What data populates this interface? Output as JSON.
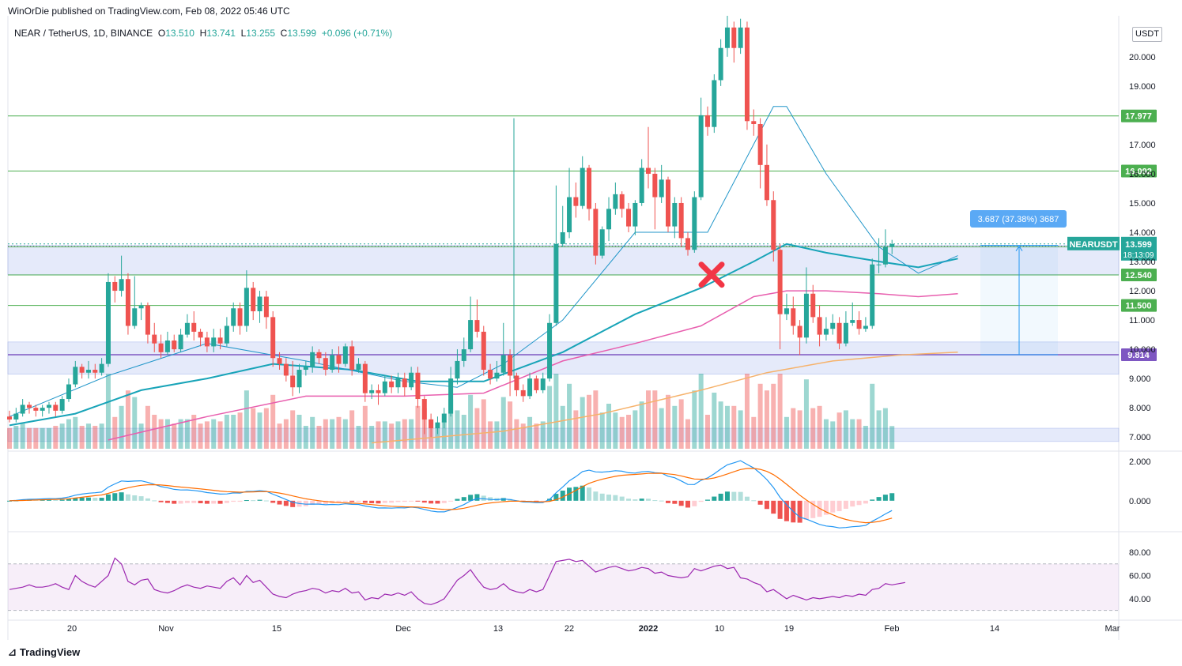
{
  "header": {
    "published": "WinOrDie published on TradingView.com, Feb 08, 2022 05:46 UTC"
  },
  "symbol": {
    "name": "NEAR / TetherUS, 1D, BINANCE",
    "o_label": "O",
    "o": "13.510",
    "h_label": "H",
    "h": "13.741",
    "l_label": "L",
    "l": "13.255",
    "c_label": "C",
    "c": "13.599",
    "change": "+0.096 (+0.71%)"
  },
  "currency": "USDT",
  "footer": {
    "brand": "TradingView"
  },
  "colors": {
    "up": "#26a69a",
    "down": "#ef5350",
    "ma_fast": "#2196c9",
    "ma_mid": "#18a4b8",
    "ma_slow": "#e85eae",
    "ma_long": "#f6b26b",
    "hline": "#4caf50",
    "support": "#7e57c2",
    "rsi": "#9c27b0"
  },
  "chart_data": {
    "type": "candlestick",
    "ylim": [
      6.6,
      21.4
    ],
    "y_ticks": [
      "7.000",
      "8.000",
      "9.000",
      "10.000",
      "11.000",
      "12.000",
      "13.000",
      "14.000",
      "15.000",
      "16.000",
      "17.000",
      "19.000",
      "20.000"
    ],
    "x_ticks": [
      "20",
      "Nov",
      "15",
      "Dec",
      "13",
      "22",
      "2022",
      "10",
      "19",
      "Feb",
      "14",
      "Mar"
    ],
    "levels": [
      {
        "label": "17.977",
        "value": 17.977
      },
      {
        "label": "16.092",
        "value": 16.092
      },
      {
        "label": "13.503",
        "value": 13.503
      },
      {
        "label": "12.540",
        "value": 12.54
      },
      {
        "label": "11.500",
        "value": 11.5
      },
      {
        "label": "9.814",
        "value": 9.814
      }
    ],
    "price_label": {
      "name": "NEARUSDT",
      "value": "13.599",
      "countdown": "18:13:09"
    },
    "measure_label": "3.687 (37.38%) 3687",
    "zones": [
      [
        12.55,
        13.55
      ],
      [
        9.15,
        10.25
      ],
      [
        6.85,
        7.3
      ]
    ],
    "candles": [
      [
        7.7,
        7.6,
        7.9,
        7.5
      ],
      [
        7.6,
        7.8,
        8.0,
        7.5
      ],
      [
        7.8,
        8.1,
        8.3,
        7.7
      ],
      [
        8.1,
        8.0,
        8.2,
        7.8
      ],
      [
        8.0,
        7.9,
        8.1,
        7.7
      ],
      [
        7.9,
        8.0,
        8.1,
        7.7
      ],
      [
        8.0,
        8.1,
        8.2,
        7.8
      ],
      [
        8.1,
        7.9,
        8.2,
        7.7
      ],
      [
        7.9,
        8.3,
        8.4,
        7.8
      ],
      [
        8.3,
        8.8,
        9.0,
        8.2
      ],
      [
        8.8,
        9.4,
        9.6,
        8.7
      ],
      [
        9.4,
        9.2,
        9.5,
        9.0
      ],
      [
        9.2,
        9.3,
        9.6,
        9.0
      ],
      [
        9.3,
        9.2,
        9.5,
        9.0
      ],
      [
        9.2,
        9.5,
        9.7,
        9.1
      ],
      [
        9.5,
        12.3,
        12.6,
        9.4
      ],
      [
        12.3,
        12.0,
        12.5,
        11.6
      ],
      [
        12.0,
        12.4,
        13.2,
        11.8
      ],
      [
        12.4,
        10.8,
        12.6,
        10.5
      ],
      [
        10.8,
        11.4,
        12.5,
        10.7
      ],
      [
        11.4,
        11.5,
        11.6,
        11.0
      ],
      [
        11.5,
        10.5,
        11.6,
        10.2
      ],
      [
        10.5,
        10.2,
        10.9,
        9.9
      ],
      [
        10.2,
        9.9,
        10.5,
        9.7
      ],
      [
        9.9,
        10.3,
        10.6,
        9.8
      ],
      [
        10.3,
        10.0,
        10.5,
        9.9
      ],
      [
        10.0,
        10.5,
        10.7,
        9.9
      ],
      [
        10.5,
        10.9,
        11.2,
        10.4
      ],
      [
        10.9,
        10.6,
        11.3,
        10.3
      ],
      [
        10.6,
        10.4,
        10.7,
        10.1
      ],
      [
        10.4,
        10.1,
        10.6,
        9.9
      ],
      [
        10.1,
        10.4,
        10.7,
        9.9
      ],
      [
        10.4,
        10.2,
        10.7,
        10.0
      ],
      [
        10.2,
        10.8,
        11.1,
        10.1
      ],
      [
        10.8,
        11.4,
        11.6,
        10.6
      ],
      [
        11.4,
        10.8,
        11.6,
        10.5
      ],
      [
        10.8,
        12.1,
        12.7,
        10.6
      ],
      [
        12.1,
        11.3,
        12.3,
        11.0
      ],
      [
        11.3,
        11.8,
        12.0,
        10.9
      ],
      [
        11.8,
        11.1,
        12.0,
        10.7
      ],
      [
        11.1,
        9.7,
        11.3,
        9.4
      ],
      [
        9.7,
        9.5,
        9.9,
        9.3
      ],
      [
        9.5,
        9.1,
        9.7,
        8.9
      ],
      [
        9.1,
        8.7,
        9.6,
        8.4
      ],
      [
        8.7,
        9.3,
        9.5,
        8.5
      ],
      [
        9.3,
        9.4,
        9.6,
        9.1
      ],
      [
        9.4,
        9.9,
        10.1,
        9.2
      ],
      [
        9.9,
        9.7,
        10.0,
        9.5
      ],
      [
        9.7,
        9.3,
        9.9,
        9.1
      ],
      [
        9.3,
        9.8,
        10.0,
        9.2
      ],
      [
        9.8,
        9.5,
        10.1,
        9.2
      ],
      [
        9.5,
        10.1,
        10.2,
        9.4
      ],
      [
        10.1,
        9.3,
        10.3,
        9.1
      ],
      [
        9.3,
        9.5,
        9.7,
        9.2
      ],
      [
        9.5,
        8.5,
        9.6,
        8.2
      ],
      [
        8.5,
        8.6,
        8.8,
        8.3
      ],
      [
        8.6,
        8.5,
        8.8,
        8.1
      ],
      [
        8.5,
        8.9,
        9.1,
        8.4
      ],
      [
        8.9,
        8.7,
        9.1,
        8.5
      ],
      [
        8.7,
        9.0,
        9.2,
        8.5
      ],
      [
        9.0,
        8.7,
        9.2,
        8.4
      ],
      [
        8.7,
        9.2,
        9.4,
        8.6
      ],
      [
        9.2,
        8.3,
        9.4,
        8.0
      ],
      [
        8.3,
        7.6,
        8.4,
        7.1
      ],
      [
        7.6,
        7.3,
        7.8,
        7.0
      ],
      [
        7.3,
        7.5,
        7.7,
        7.1
      ],
      [
        7.5,
        7.8,
        8.0,
        7.3
      ],
      [
        7.8,
        9.0,
        9.4,
        7.7
      ],
      [
        9.0,
        9.6,
        10.0,
        8.8
      ],
      [
        9.6,
        10.0,
        10.4,
        9.4
      ],
      [
        10.0,
        11.0,
        11.8,
        9.9
      ],
      [
        11.0,
        10.6,
        11.7,
        10.4
      ],
      [
        10.6,
        9.3,
        10.8,
        9.1
      ],
      [
        9.3,
        9.0,
        9.5,
        8.8
      ],
      [
        9.0,
        9.2,
        9.6,
        8.9
      ],
      [
        9.2,
        9.8,
        10.9,
        9.1
      ],
      [
        9.8,
        9.1,
        10.0,
        8.4
      ],
      [
        9.1,
        8.6,
        9.2,
        8.4
      ],
      [
        8.6,
        8.4,
        8.8,
        8.2
      ],
      [
        8.4,
        9.0,
        9.2,
        8.3
      ],
      [
        9.0,
        8.6,
        9.1,
        8.5
      ],
      [
        8.6,
        9.0,
        9.2,
        8.5
      ],
      [
        9.0,
        10.9,
        11.2,
        8.9
      ],
      [
        10.9,
        13.6,
        15.6,
        10.8
      ],
      [
        13.6,
        14.0,
        14.9,
        13.5
      ],
      [
        14.0,
        15.2,
        16.2,
        13.8
      ],
      [
        15.2,
        14.9,
        15.7,
        14.5
      ],
      [
        14.9,
        16.2,
        16.6,
        14.8
      ],
      [
        16.2,
        14.8,
        16.3,
        14.4
      ],
      [
        14.8,
        13.2,
        15.0,
        12.9
      ],
      [
        13.2,
        14.1,
        14.2,
        13.1
      ],
      [
        14.1,
        14.8,
        15.2,
        13.7
      ],
      [
        14.8,
        15.3,
        15.7,
        14.6
      ],
      [
        15.3,
        14.8,
        15.4,
        14.5
      ],
      [
        14.8,
        14.2,
        15.0,
        14.0
      ],
      [
        14.2,
        15.0,
        15.1,
        13.9
      ],
      [
        15.0,
        16.2,
        16.5,
        14.9
      ],
      [
        16.2,
        16.0,
        17.6,
        15.5
      ],
      [
        16.0,
        15.2,
        16.2,
        14.1
      ],
      [
        15.2,
        15.8,
        16.3,
        15.0
      ],
      [
        15.8,
        14.2,
        15.9,
        14.0
      ],
      [
        14.2,
        15.0,
        15.2,
        13.8
      ],
      [
        15.0,
        13.8,
        15.2,
        13.5
      ],
      [
        13.8,
        13.4,
        14.0,
        13.2
      ],
      [
        13.4,
        15.2,
        15.4,
        13.3
      ],
      [
        15.2,
        18.0,
        18.6,
        15.1
      ],
      [
        18.0,
        17.6,
        18.3,
        17.3
      ],
      [
        17.6,
        19.2,
        19.4,
        17.4
      ],
      [
        19.2,
        20.3,
        20.6,
        19.0
      ],
      [
        20.3,
        21.0,
        21.4,
        20.0
      ],
      [
        21.0,
        20.3,
        21.2,
        19.8
      ],
      [
        20.3,
        21.0,
        21.3,
        20.1
      ],
      [
        21.0,
        17.8,
        21.2,
        17.5
      ],
      [
        17.8,
        17.7,
        18.2,
        17.3
      ],
      [
        17.7,
        16.3,
        17.9,
        15.5
      ],
      [
        16.3,
        15.1,
        17.0,
        14.9
      ],
      [
        15.1,
        13.4,
        15.4,
        13.0
      ],
      [
        13.4,
        11.2,
        13.6,
        10.0
      ],
      [
        11.2,
        11.4,
        11.9,
        11.0
      ],
      [
        11.4,
        10.8,
        11.8,
        10.5
      ],
      [
        10.8,
        10.4,
        11.0,
        9.8
      ],
      [
        10.4,
        11.9,
        12.8,
        10.2
      ],
      [
        11.9,
        11.1,
        12.2,
        10.9
      ],
      [
        11.1,
        10.5,
        11.5,
        10.1
      ],
      [
        10.5,
        10.7,
        11.1,
        10.3
      ],
      [
        10.7,
        10.9,
        11.2,
        10.5
      ],
      [
        10.9,
        10.2,
        11.1,
        10.0
      ],
      [
        10.2,
        10.9,
        11.3,
        10.1
      ],
      [
        10.9,
        11.0,
        11.6,
        10.8
      ],
      [
        11.0,
        10.7,
        11.3,
        10.5
      ],
      [
        10.7,
        10.8,
        11.1,
        10.6
      ],
      [
        10.8,
        12.9,
        13.1,
        10.7
      ],
      [
        12.9,
        12.9,
        13.8,
        12.6
      ],
      [
        12.9,
        13.5,
        14.1,
        12.8
      ],
      [
        13.5,
        13.6,
        13.74,
        13.25
      ]
    ],
    "ma_fast": [
      [
        0,
        7.7
      ],
      [
        15,
        9.1
      ],
      [
        30,
        10.2
      ],
      [
        45,
        9.6
      ],
      [
        60,
        8.9
      ],
      [
        68,
        8.7
      ],
      [
        75,
        9.5
      ],
      [
        84,
        11.0
      ],
      [
        95,
        14.0
      ],
      [
        106,
        14.0
      ],
      [
        116,
        18.3
      ],
      [
        118,
        18.3
      ],
      [
        124,
        16.0
      ],
      [
        132,
        13.5
      ],
      [
        138,
        12.6
      ],
      [
        144,
        13.2
      ]
    ],
    "ma_mid": [
      [
        0,
        7.4
      ],
      [
        10,
        7.8
      ],
      [
        20,
        8.6
      ],
      [
        30,
        9.0
      ],
      [
        40,
        9.5
      ],
      [
        52,
        9.3
      ],
      [
        62,
        8.9
      ],
      [
        72,
        8.9
      ],
      [
        84,
        9.9
      ],
      [
        95,
        11.2
      ],
      [
        105,
        12.1
      ],
      [
        113,
        13.0
      ],
      [
        118,
        13.6
      ],
      [
        124,
        13.3
      ],
      [
        132,
        13.0
      ],
      [
        138,
        12.8
      ],
      [
        144,
        13.1
      ]
    ],
    "ma_slow": [
      [
        15,
        6.9
      ],
      [
        30,
        7.7
      ],
      [
        45,
        8.4
      ],
      [
        60,
        8.4
      ],
      [
        72,
        8.5
      ],
      [
        84,
        9.6
      ],
      [
        95,
        10.2
      ],
      [
        105,
        10.8
      ],
      [
        113,
        11.8
      ],
      [
        118,
        12.0
      ],
      [
        124,
        12.0
      ],
      [
        132,
        11.9
      ],
      [
        138,
        11.8
      ],
      [
        144,
        11.9
      ]
    ],
    "ma_long": [
      [
        55,
        6.8
      ],
      [
        75,
        7.2
      ],
      [
        90,
        7.8
      ],
      [
        105,
        8.6
      ],
      [
        115,
        9.2
      ],
      [
        125,
        9.6
      ],
      [
        135,
        9.8
      ],
      [
        144,
        9.9
      ]
    ],
    "macd_ylim": [
      -0.8,
      1.3
    ],
    "macd_ticks": [
      "2.000",
      "0.000"
    ],
    "rsi_ylim": [
      25,
      95
    ],
    "rsi_ticks": [
      "80.00",
      "60.00",
      "40.00"
    ],
    "rsi": [
      48,
      49,
      50,
      52,
      50,
      50,
      51,
      53,
      50,
      48,
      60,
      55,
      52,
      50,
      55,
      60,
      75,
      70,
      55,
      52,
      56,
      57,
      48,
      46,
      45,
      47,
      50,
      52,
      50,
      49,
      51,
      50,
      49,
      55,
      58,
      52,
      60,
      54,
      56,
      50,
      44,
      42,
      41,
      44,
      46,
      47,
      49,
      48,
      45,
      47,
      46,
      49,
      45,
      46,
      39,
      41,
      40,
      44,
      43,
      45,
      43,
      46,
      40,
      36,
      35,
      37,
      40,
      48,
      56,
      60,
      65,
      57,
      50,
      48,
      49,
      53,
      48,
      46,
      45,
      48,
      46,
      48,
      60,
      72,
      73,
      74,
      72,
      73,
      68,
      63,
      65,
      67,
      68,
      66,
      64,
      65,
      67,
      66,
      62,
      63,
      60,
      59,
      58,
      59,
      66,
      64,
      66,
      68,
      69,
      66,
      67,
      58,
      57,
      54,
      52,
      46,
      48,
      44,
      40,
      43,
      41,
      39,
      41,
      40,
      41,
      42,
      41,
      43,
      42,
      44,
      43,
      48,
      49,
      53,
      52,
      53,
      54
    ]
  }
}
